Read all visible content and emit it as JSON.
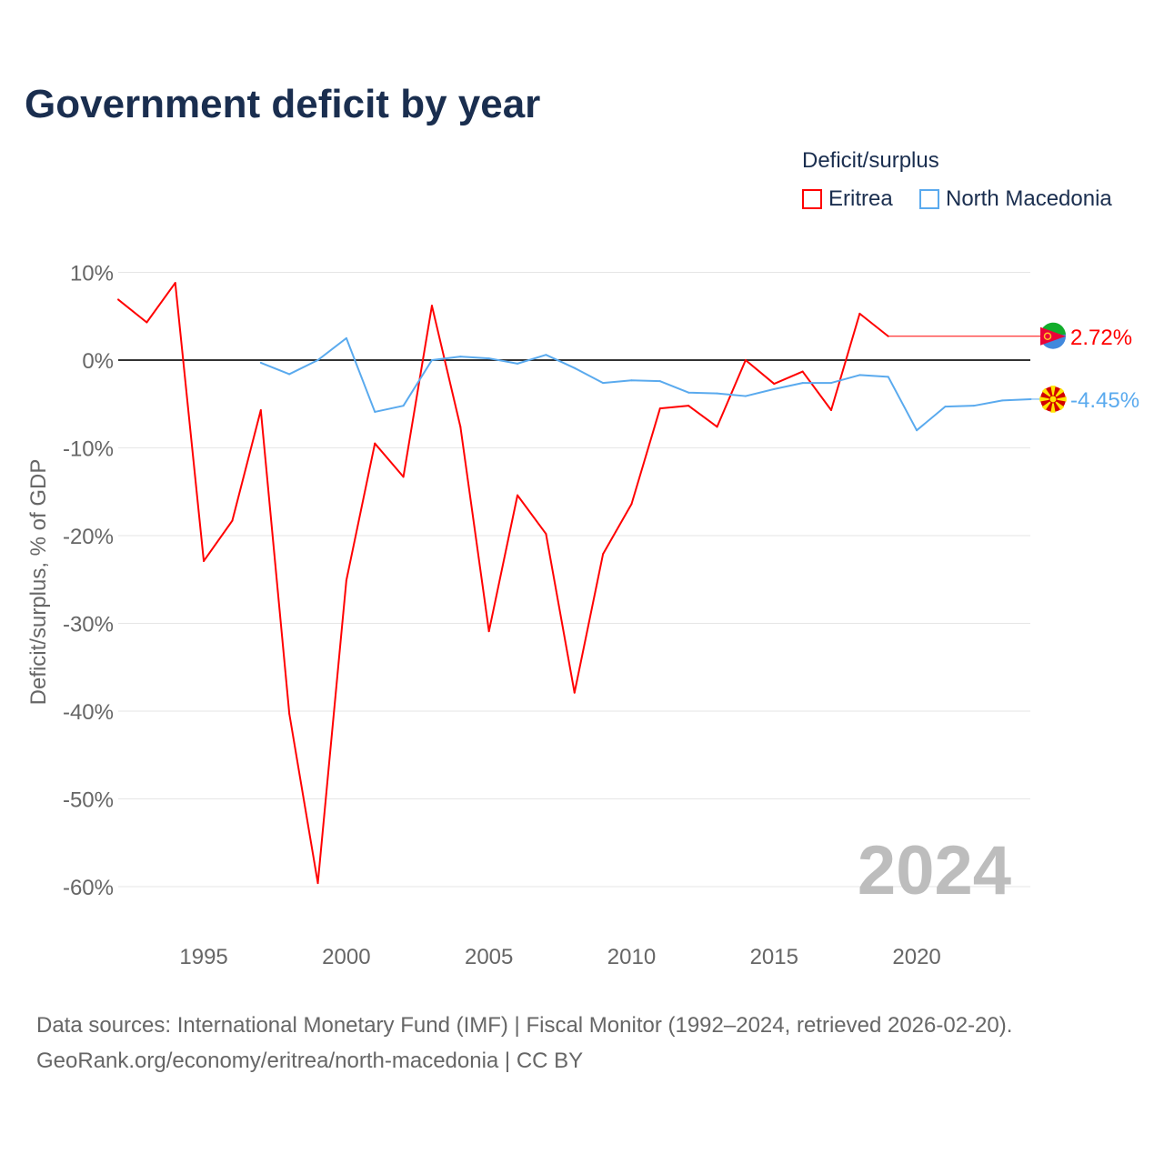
{
  "title": "Government deficit by year",
  "legend": {
    "title": "Deficit/surplus",
    "items": [
      {
        "name": "Eritrea",
        "color": "#ff0000"
      },
      {
        "name": "North Macedonia",
        "color": "#5aaaee"
      }
    ]
  },
  "source": {
    "line1": "Data sources: International Monetary Fund (IMF) | Fiscal Monitor (1992–2024, retrieved 2026-02-20).",
    "line2": "GeoRank.org/economy/eritrea/north-macedonia | CC BY"
  },
  "chart_data": {
    "type": "line",
    "title": "Government deficit by year",
    "xlabel": "",
    "ylabel": "Deficit/surplus, % of GDP",
    "xlim": [
      1992,
      2024
    ],
    "ylim": [
      -60,
      10
    ],
    "yticks": [
      10,
      0,
      -10,
      -20,
      -30,
      -40,
      -50,
      -60
    ],
    "ytick_labels": [
      "10%",
      "0%",
      "-10%",
      "-20%",
      "-30%",
      "-40%",
      "-50%",
      "-60%"
    ],
    "xticks": [
      1995,
      2000,
      2005,
      2010,
      2015,
      2020
    ],
    "xtick_labels": [
      "1995",
      "2000",
      "2005",
      "2010",
      "2015",
      "2020"
    ],
    "year_watermark": "2024",
    "series": [
      {
        "name": "Eritrea",
        "color": "#ff0000",
        "end_label": "2.72%",
        "end_value": 2.72,
        "x": [
          1992,
          1993,
          1994,
          1995,
          1996,
          1997,
          1998,
          1999,
          2000,
          2001,
          2002,
          2003,
          2004,
          2005,
          2006,
          2007,
          2008,
          2009,
          2010,
          2011,
          2012,
          2013,
          2014,
          2015,
          2016,
          2017,
          2018,
          2019
        ],
        "values": [
          6.9,
          4.3,
          8.8,
          -22.9,
          -18.3,
          -5.7,
          -40.3,
          -59.6,
          -25.1,
          -9.5,
          -13.3,
          6.2,
          -7.6,
          -30.9,
          -15.4,
          -19.8,
          -37.9,
          -22.1,
          -16.4,
          -5.5,
          -5.2,
          -7.6,
          0,
          -2.7,
          -1.3,
          -5.7,
          5.3,
          2.72
        ]
      },
      {
        "name": "North Macedonia",
        "color": "#5aaaee",
        "end_label": "-4.45%",
        "end_value": -4.45,
        "x": [
          1997,
          1998,
          1999,
          2000,
          2001,
          2002,
          2003,
          2004,
          2005,
          2006,
          2007,
          2008,
          2009,
          2010,
          2011,
          2012,
          2013,
          2014,
          2015,
          2016,
          2017,
          2018,
          2019,
          2020,
          2021,
          2022,
          2023,
          2024
        ],
        "values": [
          -0.3,
          -1.6,
          0,
          2.5,
          -5.9,
          -5.2,
          0,
          0.4,
          0.2,
          -0.4,
          0.6,
          -0.9,
          -2.6,
          -2.3,
          -2.4,
          -3.7,
          -3.8,
          -4.1,
          -3.3,
          -2.6,
          -2.6,
          -1.7,
          -1.9,
          -8.0,
          -5.3,
          -5.2,
          -4.6,
          -4.45
        ]
      }
    ]
  }
}
